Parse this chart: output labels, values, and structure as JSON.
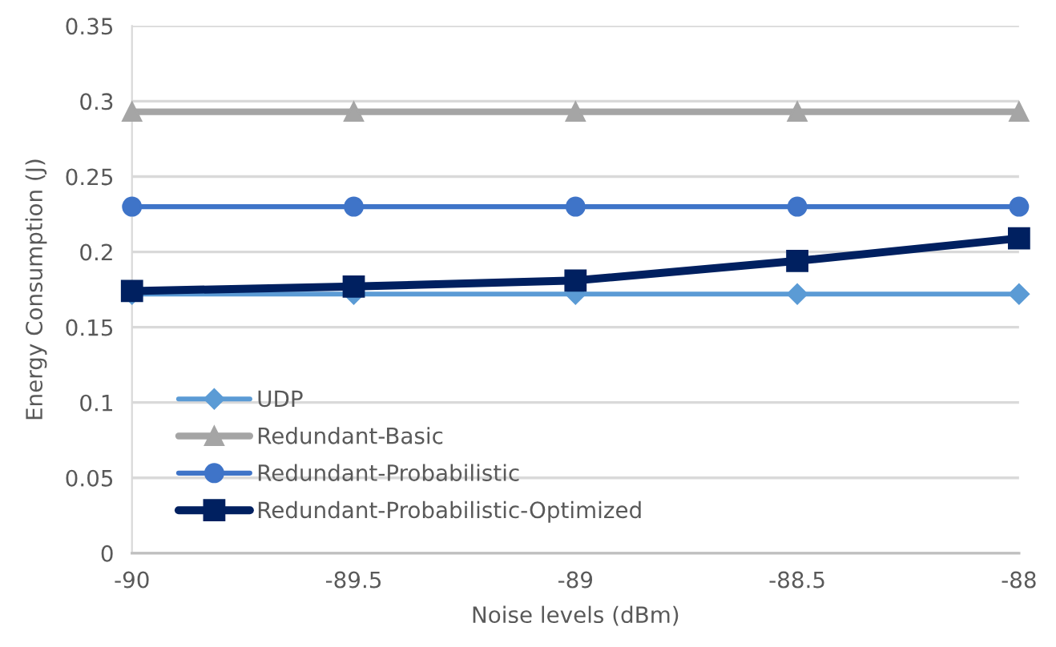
{
  "chart_data": {
    "type": "line",
    "xlabel": "Noise levels (dBm)",
    "ylabel": "Energy Consumption (J)",
    "x": [
      -90,
      -89.5,
      -89,
      -88.5,
      -88
    ],
    "series": [
      {
        "name": "UDP",
        "color": "#5b9bd5",
        "marker": "diamond",
        "values": [
          0.172,
          0.172,
          0.172,
          0.172,
          0.172
        ]
      },
      {
        "name": "Redundant-Basic",
        "color": "#a5a5a5",
        "marker": "triangle",
        "values": [
          0.293,
          0.293,
          0.293,
          0.293,
          0.293
        ]
      },
      {
        "name": "Redundant-Probabilistic",
        "color": "#3f74c8",
        "marker": "circle",
        "values": [
          0.23,
          0.23,
          0.23,
          0.23,
          0.23
        ]
      },
      {
        "name": "Redundant-Probabilistic-Optimized",
        "color": "#002060",
        "marker": "square",
        "values": [
          0.174,
          0.177,
          0.181,
          0.194,
          0.209
        ]
      }
    ],
    "xlim": [
      -90,
      -88
    ],
    "xticks": [
      -90,
      -89.5,
      -89,
      -88.5,
      -88
    ],
    "ylim": [
      0,
      0.35
    ],
    "yticks": [
      0,
      0.05,
      0.1,
      0.15,
      0.2,
      0.25,
      0.3,
      0.35
    ],
    "grid": "y",
    "legend": "bottom left",
    "line_style": "solid"
  }
}
